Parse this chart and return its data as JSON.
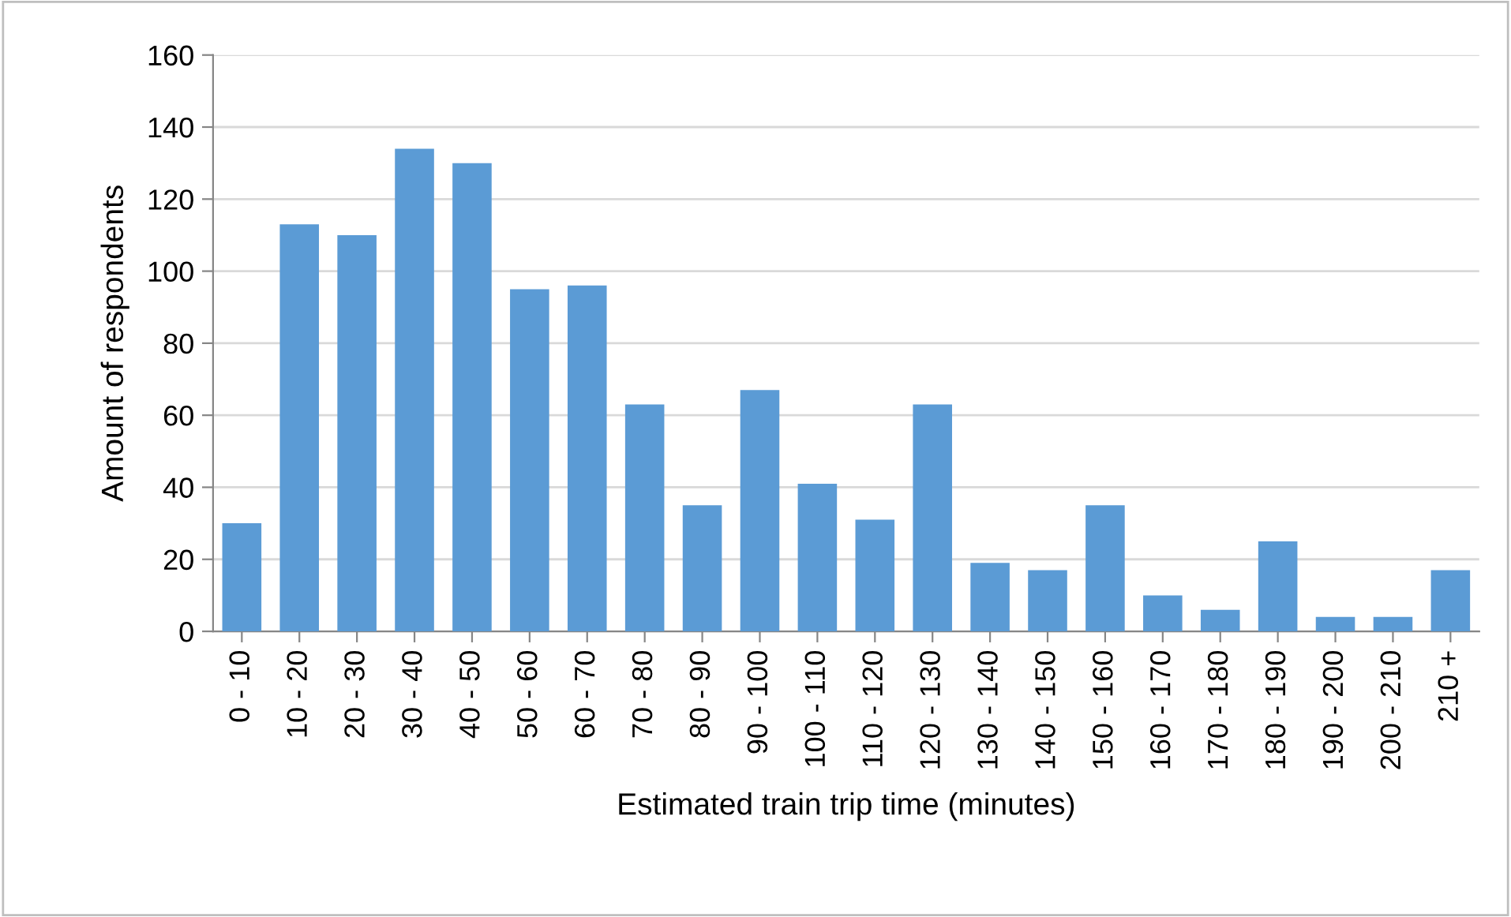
{
  "chart_data": {
    "type": "bar",
    "xlabel": "Estimated train trip time (minutes)",
    "ylabel": "Amount of respondents",
    "categories": [
      "0 - 10",
      "10 - 20",
      "20 - 30",
      "30 - 40",
      "40 - 50",
      "50 - 60",
      "60 - 70",
      "70 - 80",
      "80 - 90",
      "90 - 100",
      "100 - 110",
      "110 - 120",
      "120 - 130",
      "130 - 140",
      "140 - 150",
      "150 - 160",
      "160 - 170",
      "170 - 180",
      "180 - 190",
      "190 - 200",
      "200 - 210",
      "210 +"
    ],
    "values": [
      30,
      113,
      110,
      134,
      130,
      95,
      96,
      63,
      35,
      67,
      41,
      31,
      63,
      19,
      17,
      35,
      10,
      6,
      25,
      4,
      4,
      17
    ],
    "color": "#5b9bd5",
    "ylim": [
      0,
      160
    ],
    "yticks": [
      0,
      20,
      40,
      60,
      80,
      100,
      120,
      140,
      160
    ],
    "grid": "y"
  }
}
